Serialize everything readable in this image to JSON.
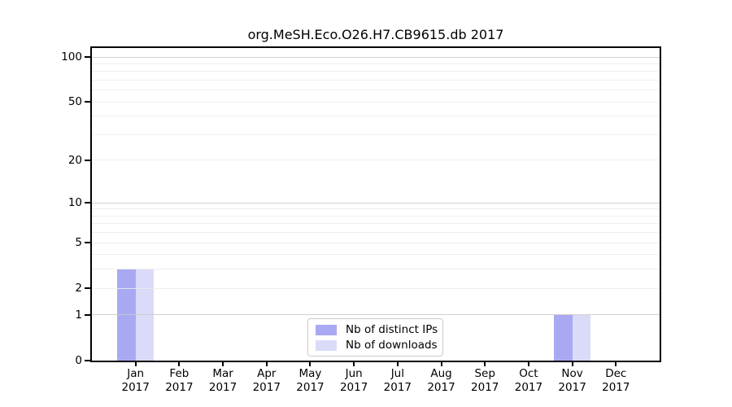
{
  "chart_data": {
    "type": "bar",
    "title": "org.MeSH.Eco.O26.H7.CB9615.db 2017",
    "categories": [
      "Jan",
      "Feb",
      "Mar",
      "Apr",
      "May",
      "Jun",
      "Jul",
      "Aug",
      "Sep",
      "Oct",
      "Nov",
      "Dec"
    ],
    "x_year_label": "2017",
    "series": [
      {
        "name": "Nb of distinct IPs",
        "color": "#a9a9f3",
        "values": [
          3,
          0,
          0,
          0,
          0,
          0,
          0,
          0,
          0,
          0,
          1,
          0
        ]
      },
      {
        "name": "Nb of downloads",
        "color": "#dadaf9",
        "values": [
          3,
          0,
          0,
          0,
          0,
          0,
          0,
          0,
          0,
          0,
          1,
          0
        ]
      }
    ],
    "yticks": [
      0,
      1,
      2,
      5,
      10,
      20,
      50,
      100
    ],
    "major_gridlines": [
      1,
      10,
      100
    ],
    "minor_gridlines": [
      3,
      4,
      6,
      7,
      8,
      9,
      30,
      40,
      60,
      70,
      80,
      90
    ],
    "scale": "log1p",
    "ylim": [
      0,
      115
    ],
    "grid": true,
    "legend_position": "lower center",
    "colors": {
      "axis": "#000000",
      "text": "#000000",
      "grid_major": "#c9c9c9",
      "grid_minor": "#ececec",
      "background": "#ffffff"
    }
  }
}
